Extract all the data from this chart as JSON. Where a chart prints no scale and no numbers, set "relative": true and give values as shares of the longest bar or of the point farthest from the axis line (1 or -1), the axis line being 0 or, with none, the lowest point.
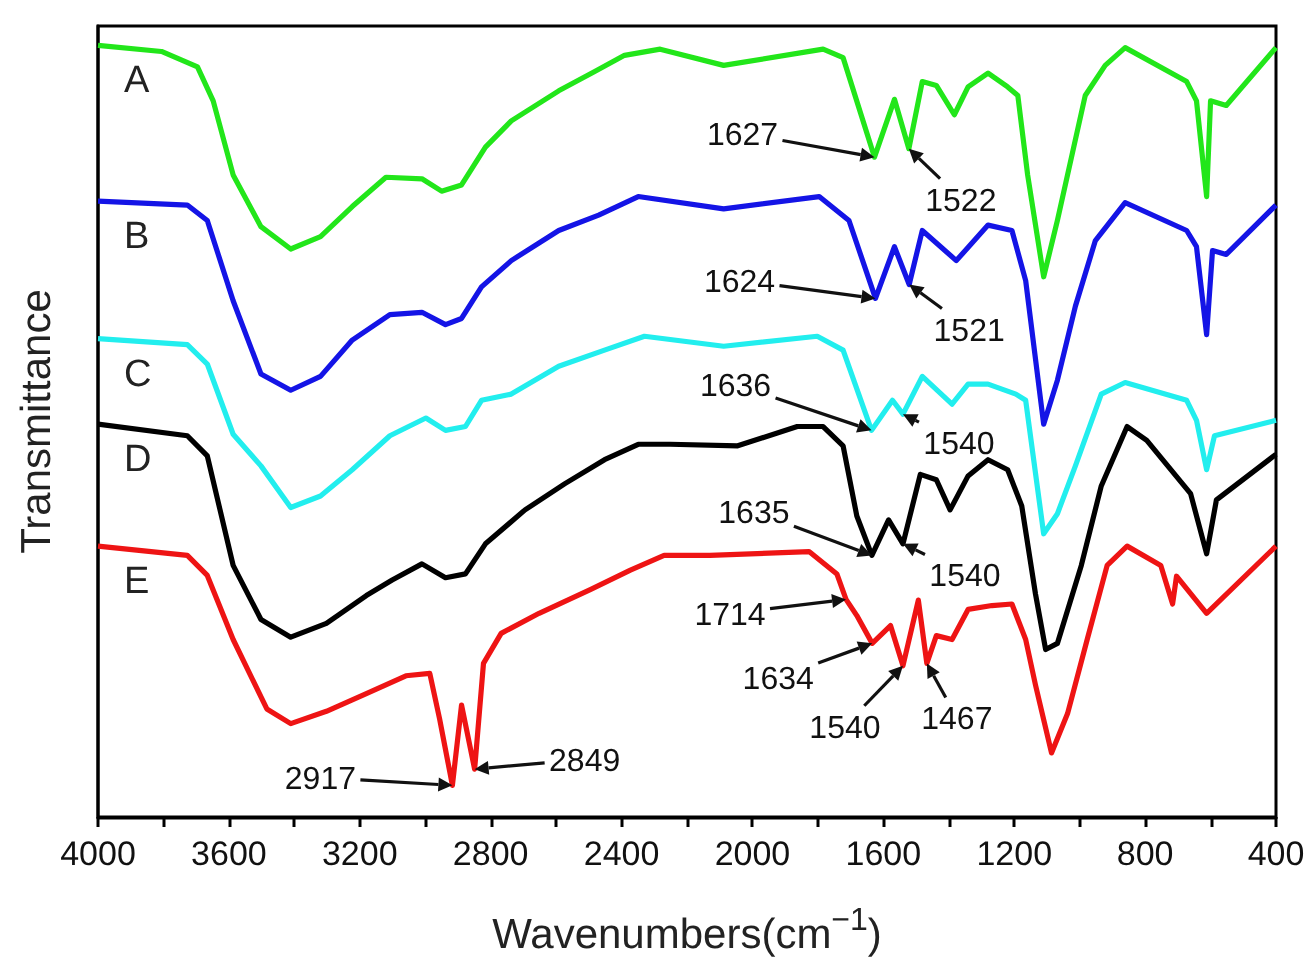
{
  "chart_data": {
    "type": "line",
    "relative": true,
    "marker": "none",
    "tick_labels": "x",
    "xlabel": "Wavenumbers(cm$^{−1}$)",
    "ylabel": "Transmittance",
    "xlim": [
      4000,
      400
    ],
    "xticks": [
      4000,
      {
        "value": 3800,
        "label": null
      },
      3600,
      {
        "value": 3400,
        "label": null
      },
      3200,
      {
        "value": 3000,
        "label": null
      },
      2800,
      {
        "value": 2600,
        "label": null
      },
      2400,
      {
        "value": 2200,
        "label": null
      },
      2000,
      {
        "value": 1800,
        "label": null
      },
      1600,
      {
        "value": 1400,
        "label": null
      },
      1200,
      {
        "value": 1000,
        "label": null
      },
      800,
      {
        "value": 600,
        "label": null
      },
      400
    ],
    "series": [
      {
        "name": "A",
        "color": "#22e61a",
        "x": [
          4000,
          3806,
          3696,
          3648,
          3587,
          3502,
          3411,
          3320,
          3223,
          3120,
          3010,
          2950,
          2889,
          2816,
          2737,
          2592,
          2482,
          2391,
          2282,
          2088,
          1784,
          1723,
          1627,
          1566,
          1522,
          1481,
          1438,
          1383,
          1341,
          1280,
          1220,
          1189,
          1159,
          1110,
          1068,
          983,
          922,
          861,
          673,
          643,
          612,
          600,
          552,
          400
        ],
        "values": [
          1.0,
          0.992,
          0.972,
          0.928,
          0.832,
          0.765,
          0.736,
          0.752,
          0.791,
          0.829,
          0.827,
          0.811,
          0.819,
          0.868,
          0.902,
          0.941,
          0.966,
          0.987,
          0.995,
          0.974,
          0.995,
          0.984,
          0.855,
          0.93,
          0.866,
          0.953,
          0.948,
          0.91,
          0.946,
          0.964,
          0.946,
          0.935,
          0.832,
          0.7,
          0.773,
          0.935,
          0.974,
          0.997,
          0.953,
          0.928,
          0.804,
          0.928,
          0.922,
          0.997
        ]
      },
      {
        "name": "B",
        "color": "#1414e6",
        "x": [
          4000,
          3727,
          3666,
          3587,
          3502,
          3411,
          3320,
          3223,
          3108,
          3010,
          2938,
          2889,
          2828,
          2737,
          2592,
          2470,
          2349,
          2088,
          1796,
          1705,
          1624,
          1566,
          1521,
          1481,
          1377,
          1280,
          1207,
          1165,
          1110,
          1068,
          1013,
          952,
          861,
          673,
          643,
          612,
          594,
          552,
          400
        ],
        "values": [
          0.798,
          0.793,
          0.773,
          0.669,
          0.574,
          0.553,
          0.571,
          0.618,
          0.651,
          0.654,
          0.638,
          0.646,
          0.687,
          0.721,
          0.76,
          0.78,
          0.804,
          0.788,
          0.804,
          0.773,
          0.672,
          0.739,
          0.69,
          0.76,
          0.721,
          0.767,
          0.76,
          0.695,
          0.509,
          0.566,
          0.662,
          0.747,
          0.796,
          0.76,
          0.739,
          0.625,
          0.734,
          0.729,
          0.793
        ]
      },
      {
        "name": "C",
        "color": "#22eeee",
        "x": [
          4000,
          3727,
          3666,
          3587,
          3502,
          3411,
          3320,
          3223,
          3108,
          2998,
          2938,
          2877,
          2828,
          2737,
          2592,
          2452,
          2330,
          2088,
          1802,
          1723,
          1636,
          1572,
          1540,
          1481,
          1390,
          1341,
          1280,
          1195,
          1165,
          1110,
          1068,
          1013,
          934,
          861,
          673,
          643,
          612,
          588,
          400
        ],
        "values": [
          0.62,
          0.612,
          0.587,
          0.496,
          0.455,
          0.401,
          0.416,
          0.45,
          0.494,
          0.517,
          0.501,
          0.506,
          0.54,
          0.548,
          0.584,
          0.605,
          0.623,
          0.61,
          0.623,
          0.605,
          0.501,
          0.54,
          0.522,
          0.571,
          0.535,
          0.561,
          0.561,
          0.548,
          0.54,
          0.367,
          0.393,
          0.455,
          0.548,
          0.563,
          0.54,
          0.514,
          0.45,
          0.494,
          0.514
        ]
      },
      {
        "name": "D",
        "color": "#000000",
        "x": [
          4000,
          3727,
          3666,
          3587,
          3502,
          3411,
          3302,
          3180,
          3101,
          3010,
          2938,
          2877,
          2816,
          2695,
          2573,
          2452,
          2349,
          2252,
          2045,
          1863,
          1784,
          1723,
          1681,
          1635,
          1584,
          1540,
          1487,
          1438,
          1396,
          1341,
          1280,
          1220,
          1177,
          1135,
          1104,
          1068,
          995,
          934,
          855,
          795,
          661,
          612,
          582,
          400
        ],
        "values": [
          0.509,
          0.494,
          0.468,
          0.326,
          0.256,
          0.233,
          0.251,
          0.287,
          0.307,
          0.328,
          0.31,
          0.315,
          0.354,
          0.398,
          0.432,
          0.463,
          0.483,
          0.483,
          0.481,
          0.506,
          0.506,
          0.481,
          0.39,
          0.339,
          0.385,
          0.354,
          0.444,
          0.437,
          0.398,
          0.442,
          0.463,
          0.45,
          0.403,
          0.289,
          0.217,
          0.225,
          0.326,
          0.429,
          0.506,
          0.488,
          0.419,
          0.341,
          0.411,
          0.47
        ]
      },
      {
        "name": "E",
        "color": "#ee1414",
        "x": [
          4000,
          3727,
          3666,
          3587,
          3484,
          3411,
          3302,
          3180,
          3059,
          2986,
          2956,
          2917,
          2889,
          2849,
          2822,
          2768,
          2652,
          2494,
          2373,
          2270,
          2130,
          1827,
          1742,
          1714,
          1681,
          1634,
          1578,
          1540,
          1493,
          1467,
          1438,
          1390,
          1341,
          1268,
          1207,
          1165,
          1135,
          1086,
          1037,
          977,
          916,
          855,
          752,
          716,
          704,
          612,
          400
        ],
        "values": [
          0.351,
          0.339,
          0.313,
          0.23,
          0.14,
          0.121,
          0.137,
          0.16,
          0.183,
          0.186,
          0.127,
          0.041,
          0.145,
          0.062,
          0.199,
          0.238,
          0.264,
          0.295,
          0.32,
          0.339,
          0.339,
          0.344,
          0.315,
          0.282,
          0.261,
          0.225,
          0.248,
          0.196,
          0.281,
          0.199,
          0.235,
          0.23,
          0.269,
          0.274,
          0.276,
          0.23,
          0.171,
          0.083,
          0.134,
          0.23,
          0.326,
          0.351,
          0.326,
          0.276,
          0.312,
          0.264,
          0.351
        ]
      }
    ],
    "annotations": [
      {
        "text": "1627",
        "x": 1627,
        "y": 0.855
      },
      {
        "text": "1522",
        "x": 1522,
        "y": 0.866
      },
      {
        "text": "1624",
        "x": 1624,
        "y": 0.672
      },
      {
        "text": "1521",
        "x": 1521,
        "y": 0.69
      },
      {
        "text": "1636",
        "x": 1636,
        "y": 0.501
      },
      {
        "text": "1540",
        "x": 1540,
        "y": 0.522
      },
      {
        "text": "1635",
        "x": 1635,
        "y": 0.339
      },
      {
        "text": "1540",
        "x": 1540,
        "y": 0.354
      },
      {
        "text": "2917",
        "x": 2917,
        "y": 0.041
      },
      {
        "text": "2849",
        "x": 2849,
        "y": 0.062
      },
      {
        "text": "1714",
        "x": 1714,
        "y": 0.282
      },
      {
        "text": "1634",
        "x": 1634,
        "y": 0.225
      },
      {
        "text": "1540",
        "x": 1540,
        "y": 0.196
      },
      {
        "text": "1467",
        "x": 1467,
        "y": 0.199
      }
    ]
  }
}
